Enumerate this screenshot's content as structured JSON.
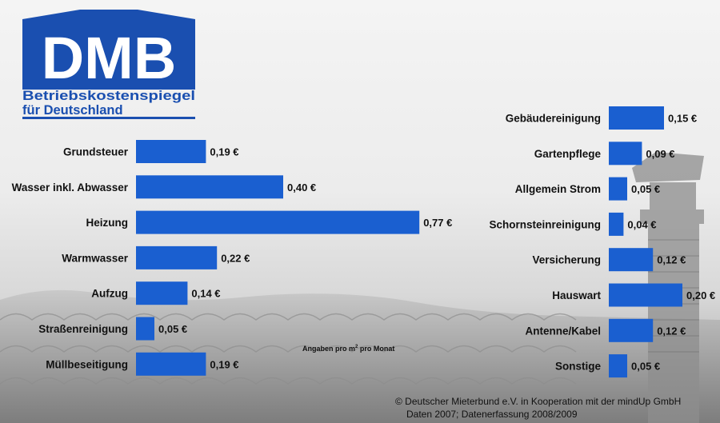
{
  "logo": {
    "big_text": "DMB",
    "line1": "Betriebskostenspiegel",
    "line2": "für Deutschland"
  },
  "note": {
    "prefix": "Angaben pro m",
    "sup": "2",
    "suffix": " pro Monat"
  },
  "footer": {
    "line1": "©  Deutscher Mieterbund e.V. in Kooperation mit der mindUp GmbH",
    "line2": "Daten 2007; Datenerfassung 2008/2009"
  },
  "colors": {
    "bar": "#1a5fd0",
    "logo": "#1a4fb0"
  },
  "chart_data": [
    {
      "type": "bar",
      "orientation": "horizontal",
      "categories": [
        "Grundsteuer",
        "Wasser inkl. Abwasser",
        "Heizung",
        "Warmwasser",
        "Aufzug",
        "Straßenreinigung",
        "Müllbeseitigung"
      ],
      "values": [
        0.19,
        0.4,
        0.77,
        0.22,
        0.14,
        0.05,
        0.19
      ],
      "value_labels": [
        "0,19 €",
        "0,40 €",
        "0,77 €",
        "0,22 €",
        "0,14 €",
        "0,05 €",
        "0,19 €"
      ]
    },
    {
      "type": "bar",
      "orientation": "horizontal",
      "categories": [
        "Gebäudereinigung",
        "Gartenpflege",
        "Allgemein Strom",
        "Schornsteinreinigung",
        "Versicherung",
        "Hauswart",
        "Antenne/Kabel",
        "Sonstige"
      ],
      "values": [
        0.15,
        0.09,
        0.05,
        0.04,
        0.12,
        0.2,
        0.12,
        0.05
      ],
      "value_labels": [
        "0,15 €",
        "0,09 €",
        "0,05 €",
        "0,04 €",
        "0,12 €",
        "0,20 €",
        "0,12 €",
        "0,05 €"
      ]
    }
  ]
}
